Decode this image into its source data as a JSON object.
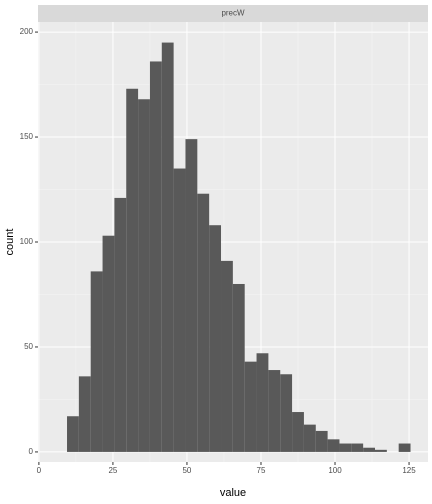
{
  "chart_data": {
    "type": "histogram",
    "facet": "precW",
    "bins": [
      9.5,
      13.5,
      17.5,
      21.5,
      25.5,
      29.5,
      33.5,
      37.5,
      41.5,
      45.5,
      49.5,
      53.5,
      57.5,
      61.5,
      65.5,
      69.5,
      73.5,
      77.5,
      81.5,
      85.5,
      89.5,
      93.5,
      97.5,
      101.5,
      105.5,
      109.5,
      113.5,
      117.5,
      121.5,
      125.5
    ],
    "values": [
      17,
      36,
      86,
      103,
      121,
      173,
      168,
      186,
      195,
      135,
      149,
      123,
      108,
      91,
      80,
      43,
      47,
      39,
      37,
      19,
      13,
      10,
      6,
      4,
      4,
      2,
      1,
      0,
      4
    ],
    "color": "#595959",
    "x_label": "value",
    "y_label": "count",
    "xlim": [
      -0.3,
      131.4
    ],
    "xticks": [
      0,
      25,
      50,
      75,
      100,
      125
    ],
    "ylim": [
      -4.8,
      204.8
    ],
    "yticks": [
      0,
      50,
      100,
      150,
      200
    ],
    "grid": true
  }
}
